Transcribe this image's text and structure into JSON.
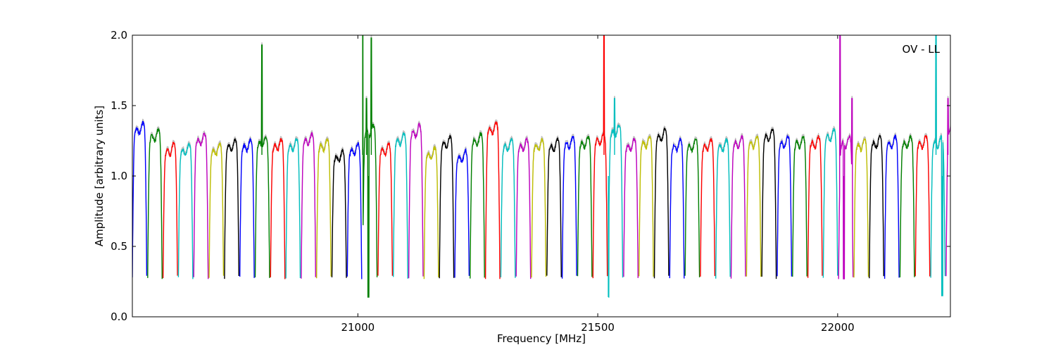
{
  "chart_data": {
    "type": "line",
    "title": "",
    "annotation": "OV - LL",
    "xlabel": "Frequency [MHz]",
    "ylabel": "Amplitude [arbitrary units]",
    "xlim": [
      20530,
      22235
    ],
    "ylim": [
      0.0,
      2.0
    ],
    "xticks": [
      21000,
      21500,
      22000
    ],
    "yticks": [
      0.0,
      0.5,
      1.0,
      1.5,
      2.0
    ],
    "ytick_labels": [
      "0.0",
      "0.5",
      "1.0",
      "1.5",
      "2.0"
    ],
    "xtick_labels": [
      "21000",
      "21500",
      "22000"
    ],
    "grid": false,
    "legend": "none",
    "channel_width_mhz": 32,
    "channel_start_mhz": 20530,
    "series_colors": [
      "#0000ff",
      "#008000",
      "#ff0000",
      "#00bfbf",
      "#bf00bf",
      "#bfbf00",
      "#000000"
    ],
    "raw_color": "#c0c0c0",
    "channel_plateau_levels": [
      1.3,
      1.25,
      1.15,
      1.15,
      1.22,
      1.15,
      1.18,
      1.18,
      1.2,
      1.18,
      1.18,
      1.22,
      1.18,
      1.1,
      1.15,
      1.28,
      1.15,
      1.22,
      1.28,
      1.12,
      1.2,
      1.1,
      1.22,
      1.3,
      1.18,
      1.18,
      1.18,
      1.18,
      1.2,
      1.2,
      1.22,
      1.28,
      1.18,
      1.2,
      1.25,
      1.18,
      1.18,
      1.18,
      1.18,
      1.2,
      1.2,
      1.25,
      1.2,
      1.2,
      1.2,
      1.25,
      1.2,
      1.18,
      1.2,
      1.2,
      1.2,
      1.2,
      1.2
    ],
    "spikes": [
      {
        "x": 20800,
        "y": 1.93
      },
      {
        "x": 21010,
        "y": 2.0
      },
      {
        "x": 21018,
        "y": 1.55
      },
      {
        "x": 21028,
        "y": 1.98
      },
      {
        "x": 21513,
        "y": 2.0
      },
      {
        "x": 21535,
        "y": 1.55
      },
      {
        "x": 22005,
        "y": 2.0
      },
      {
        "x": 22030,
        "y": 1.55
      },
      {
        "x": 22205,
        "y": 2.0
      },
      {
        "x": 22230,
        "y": 1.55
      }
    ],
    "dips": [
      {
        "x": 21022,
        "y": 0.14
      },
      {
        "x": 21522,
        "y": 0.14
      },
      {
        "x": 22013,
        "y": 0.27
      },
      {
        "x": 22218,
        "y": 0.15
      }
    ]
  }
}
